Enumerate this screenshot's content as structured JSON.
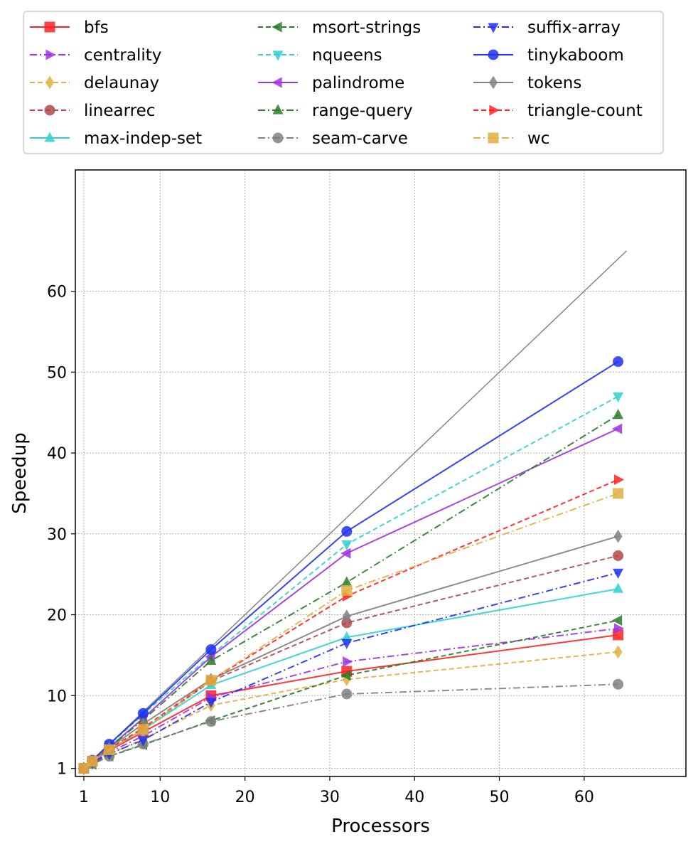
{
  "chart_data": {
    "type": "line",
    "title": "",
    "xlabel": "Processors",
    "ylabel": "Speedup",
    "xlim": [
      0,
      72
    ],
    "ylim": [
      0,
      75
    ],
    "xticks": [
      1,
      10,
      20,
      30,
      40,
      50,
      60
    ],
    "yticks": [
      1,
      10,
      20,
      30,
      40,
      50,
      60
    ],
    "grid": true,
    "legend_position": "top",
    "x": [
      1,
      2,
      4,
      8,
      16,
      32,
      64
    ],
    "reference_line": {
      "x": [
        1,
        65
      ],
      "y": [
        1,
        65
      ],
      "color": "#808080"
    },
    "series": [
      {
        "name": "bfs",
        "color": "#ff2020",
        "linestyle": "solid",
        "marker": "square",
        "y": [
          1,
          1.9,
          3.2,
          5.5,
          10.0,
          13.0,
          17.5
        ]
      },
      {
        "name": "centrality",
        "color": "#a030e0",
        "linestyle": "dashdot",
        "marker": "triangle-right",
        "y": [
          1,
          1.8,
          3.0,
          5.0,
          9.8,
          14.2,
          18.3
        ]
      },
      {
        "name": "delaunay",
        "color": "#e0b040",
        "linestyle": "dashed",
        "marker": "diamond",
        "y": [
          1,
          1.6,
          2.8,
          4.6,
          8.8,
          12.0,
          15.4
        ]
      },
      {
        "name": "linearrec",
        "color": "#b04848",
        "linestyle": "dashed",
        "marker": "circle",
        "y": [
          1,
          1.9,
          3.3,
          5.8,
          11.8,
          19.0,
          27.3
        ]
      },
      {
        "name": "max-indep-set",
        "color": "#30d0d0",
        "linestyle": "solid",
        "marker": "triangle-up",
        "y": [
          1,
          1.9,
          3.3,
          5.8,
          11.3,
          17.2,
          23.2
        ]
      },
      {
        "name": "msort-strings",
        "color": "#2a7a2a",
        "linestyle": "dashed",
        "marker": "triangle-left",
        "y": [
          1,
          1.5,
          2.5,
          3.9,
          6.9,
          12.5,
          19.3
        ]
      },
      {
        "name": "nqueens",
        "color": "#30d0d0",
        "linestyle": "dashed",
        "marker": "triangle-down",
        "y": [
          1,
          2.0,
          3.9,
          7.7,
          15.0,
          28.7,
          47.0
        ]
      },
      {
        "name": "palindrome",
        "color": "#a030e0",
        "linestyle": "solid",
        "marker": "triangle-left",
        "y": [
          1,
          1.9,
          3.6,
          7.2,
          14.8,
          27.6,
          43.0
        ]
      },
      {
        "name": "range-query",
        "color": "#2a7a2a",
        "linestyle": "dashdot",
        "marker": "triangle-up",
        "y": [
          1,
          1.9,
          3.6,
          7.0,
          14.3,
          24.0,
          44.7
        ]
      },
      {
        "name": "seam-carve",
        "color": "#808080",
        "linestyle": "dashdot",
        "marker": "circle",
        "y": [
          1,
          1.6,
          2.5,
          4.0,
          6.8,
          10.2,
          11.4
        ]
      },
      {
        "name": "suffix-array",
        "color": "#2030f0",
        "linestyle": "dashdot",
        "marker": "triangle-down",
        "y": [
          1,
          1.7,
          2.8,
          4.5,
          9.2,
          16.5,
          25.2
        ]
      },
      {
        "name": "tinykaboom",
        "color": "#2030f0",
        "linestyle": "solid",
        "marker": "circle",
        "y": [
          1,
          2.0,
          4.0,
          7.8,
          15.7,
          30.3,
          51.3
        ]
      },
      {
        "name": "tokens",
        "color": "#808080",
        "linestyle": "solid",
        "marker": "diamond",
        "y": [
          1,
          1.9,
          3.5,
          6.5,
          12.0,
          19.8,
          29.7
        ]
      },
      {
        "name": "triangle-count",
        "color": "#ff2020",
        "linestyle": "dashed",
        "marker": "triangle-right",
        "y": [
          1,
          1.9,
          3.4,
          6.0,
          11.9,
          22.3,
          36.7
        ]
      },
      {
        "name": "wc",
        "color": "#e0b040",
        "linestyle": "dashdot",
        "marker": "square",
        "y": [
          1,
          1.9,
          3.3,
          5.8,
          11.9,
          23.0,
          35.0
        ]
      }
    ]
  }
}
